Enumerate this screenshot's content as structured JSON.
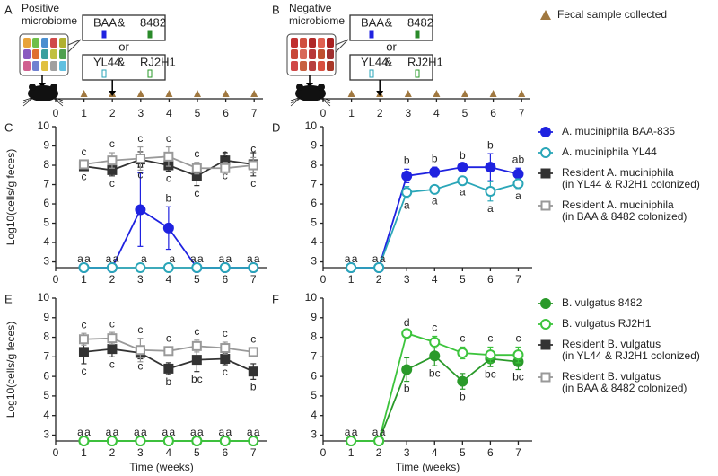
{
  "schematic": [
    {
      "label": "A",
      "title": [
        "Positive",
        "microbiome"
      ],
      "box_1": [
        "BAA",
        "&",
        "8482"
      ],
      "or": "or",
      "box_2": [
        "YL44",
        "&",
        "RJ2H1"
      ],
      "timeline": [
        0,
        1,
        2,
        3,
        4,
        5,
        6,
        7
      ]
    },
    {
      "label": "B",
      "title": [
        "Negative",
        "microbiome"
      ],
      "box_1": [
        "BAA",
        "&",
        "8482"
      ],
      "or": "or",
      "box_2": [
        "YL44",
        "&",
        "RJ2H1"
      ],
      "timeline": [
        0,
        1,
        2,
        3,
        4,
        5,
        6,
        7
      ]
    }
  ],
  "sample_legend": "Fecal sample collected",
  "chart_data": [
    {
      "type": "line",
      "panel_label": "C",
      "ylabel": "Log10(cells/g feces)",
      "x": [
        1,
        2,
        3,
        4,
        5,
        6,
        7
      ],
      "xlim": [
        0,
        7.5
      ],
      "xticks": [
        0,
        1,
        2,
        3,
        4,
        5,
        6,
        7
      ],
      "ylim": [
        2.7,
        10
      ],
      "yticks": [
        3,
        4,
        5,
        6,
        7,
        8,
        9,
        10
      ],
      "legend": "right",
      "series": [
        {
          "name": "A. muciniphila BAA-835",
          "color": "#1f22e0",
          "marker": "circle",
          "filled": true,
          "values": [
            2.7,
            2.7,
            5.7,
            4.75,
            2.7,
            2.7,
            2.7
          ],
          "errors": [
            0,
            0,
            1.9,
            1.1,
            0,
            0,
            0
          ],
          "letters": [
            "a",
            "a",
            "b",
            "b",
            "a",
            "a",
            "a"
          ],
          "letter_side": "above"
        },
        {
          "name": "A. muciniphila YL44",
          "color": "#2aa6b8",
          "marker": "circle",
          "filled": false,
          "values": [
            2.7,
            2.7,
            2.7,
            2.7,
            2.7,
            2.7,
            2.7
          ],
          "errors": [
            0,
            0,
            0,
            0,
            0,
            0,
            0
          ],
          "letters": [
            "a",
            "a",
            "a",
            "a",
            "a",
            "a",
            "a"
          ],
          "letter_side": "above"
        },
        {
          "name": "Resident A. muciniphila",
          "name_note": "(in YL44 & RJ2H1 colonized)",
          "color": "#333333",
          "marker": "square",
          "filled": true,
          "values": [
            7.95,
            7.75,
            8.3,
            8.0,
            7.45,
            8.25,
            8.05
          ],
          "errors": [
            0.15,
            0.3,
            0.4,
            0.3,
            0.5,
            0.4,
            0.6
          ],
          "letters": [
            "c",
            "c",
            "c",
            "c",
            "c",
            "c",
            "c"
          ],
          "letter_side": "below"
        },
        {
          "name": "Resident A. muciniphila",
          "name_note": "(in BAA & 8482 colonized)",
          "color": "#999999",
          "marker": "square",
          "filled": false,
          "values": [
            8.05,
            8.25,
            8.35,
            8.45,
            7.85,
            7.85,
            8.0
          ],
          "errors": [
            0.2,
            0.4,
            0.6,
            0.5,
            0.3,
            0.3,
            0.4
          ],
          "letters": [
            "c",
            "c",
            "c",
            "c",
            "c",
            "c",
            "c"
          ],
          "letter_side": "above"
        }
      ]
    },
    {
      "type": "line",
      "panel_label": "D",
      "x": [
        1,
        2,
        3,
        4,
        5,
        6,
        7
      ],
      "xlim": [
        0,
        7.5
      ],
      "xticks": [
        0,
        1,
        2,
        3,
        4,
        5,
        6,
        7
      ],
      "ylim": [
        2.7,
        10
      ],
      "yticks": [
        3,
        4,
        5,
        6,
        7,
        8,
        9,
        10
      ],
      "series": [
        {
          "color": "#1f22e0",
          "marker": "circle",
          "filled": true,
          "values": [
            2.7,
            2.7,
            7.45,
            7.65,
            7.9,
            7.9,
            7.55
          ],
          "errors": [
            0,
            0,
            0.35,
            0.25,
            0.15,
            0.7,
            0.3
          ],
          "letters": [
            "a",
            "a",
            "b",
            "b",
            "b",
            "b",
            "ab"
          ],
          "letter_side": "above"
        },
        {
          "color": "#2aa6b8",
          "marker": "circle",
          "filled": false,
          "values": [
            2.7,
            2.7,
            6.6,
            6.75,
            7.2,
            6.65,
            7.05
          ],
          "errors": [
            0,
            0,
            0.3,
            0.2,
            0.2,
            0.5,
            0.25
          ],
          "letters": [
            "a",
            "a",
            "a",
            "a",
            "a",
            "a",
            "a"
          ],
          "letter_side": "below"
        }
      ]
    },
    {
      "type": "line",
      "panel_label": "E",
      "ylabel": "Log10(cells/g feces)",
      "x": [
        1,
        2,
        3,
        4,
        5,
        6,
        7
      ],
      "xlim": [
        0,
        7.5
      ],
      "xticks": [
        0,
        1,
        2,
        3,
        4,
        5,
        6,
        7
      ],
      "ylim": [
        2.7,
        10
      ],
      "yticks": [
        3,
        4,
        5,
        6,
        7,
        8,
        9,
        10
      ],
      "legend": "right",
      "series": [
        {
          "name": "B. vulgatus 8482",
          "color": "#2a9a2a",
          "marker": "circle",
          "filled": true,
          "values": [
            2.7,
            2.7,
            2.7,
            2.7,
            2.7,
            2.7,
            2.7
          ],
          "errors": [
            0,
            0,
            0,
            0,
            0,
            0,
            0
          ],
          "letters": [
            "a",
            "a",
            "a",
            "a",
            "a",
            "a",
            "a"
          ],
          "letter_side": "above"
        },
        {
          "name": "B. vulgatus RJ2H1",
          "color": "#3cc43c",
          "marker": "circle",
          "filled": false,
          "values": [
            2.7,
            2.7,
            2.7,
            2.7,
            2.7,
            2.7,
            2.7
          ],
          "errors": [
            0,
            0,
            0,
            0,
            0,
            0,
            0
          ],
          "letters": [
            "a",
            "a",
            "a",
            "a",
            "a",
            "a",
            "a"
          ],
          "letter_side": "above"
        },
        {
          "name": "Resident B. vulgatus",
          "name_note": "(in YL44 & RJ2H1 colonized)",
          "color": "#333333",
          "marker": "square",
          "filled": true,
          "values": [
            7.25,
            7.4,
            7.2,
            6.4,
            6.85,
            6.9,
            6.25
          ],
          "errors": [
            0.6,
            0.4,
            0.3,
            0.3,
            0.6,
            0.3,
            0.4
          ],
          "letters": [
            "c",
            "c",
            "c",
            "b",
            "bc",
            "c",
            "b"
          ],
          "letter_side": "below"
        },
        {
          "name": "Resident B. vulgatus",
          "name_note": "(in BAA & 8482 colonized)",
          "color": "#999999",
          "marker": "square",
          "filled": false,
          "values": [
            7.9,
            7.95,
            7.35,
            7.3,
            7.55,
            7.45,
            7.25
          ],
          "errors": [
            0.3,
            0.3,
            0.6,
            0.2,
            0.3,
            0.3,
            0.2
          ],
          "letters": [
            "c",
            "c",
            "c",
            "c",
            "c",
            "c",
            "c"
          ],
          "letter_side": "above"
        }
      ]
    },
    {
      "type": "line",
      "panel_label": "F",
      "xlabel": "Time (weeks)",
      "x": [
        1,
        2,
        3,
        4,
        5,
        6,
        7
      ],
      "xlim": [
        0,
        7.5
      ],
      "xticks": [
        0,
        1,
        2,
        3,
        4,
        5,
        6,
        7
      ],
      "ylim": [
        2.7,
        10
      ],
      "yticks": [
        3,
        4,
        5,
        6,
        7,
        8,
        9,
        10
      ],
      "series": [
        {
          "color": "#2a9a2a",
          "marker": "circle",
          "filled": true,
          "values": [
            2.7,
            2.7,
            6.35,
            7.05,
            5.75,
            6.9,
            6.75
          ],
          "errors": [
            0,
            0,
            0.6,
            0.5,
            0.4,
            0.4,
            0.4
          ],
          "letters": [
            "a",
            "a",
            "b",
            "bc",
            "b",
            "bc",
            "bc"
          ],
          "letter_side": "below"
        },
        {
          "color": "#3cc43c",
          "marker": "circle",
          "filled": false,
          "values": [
            2.7,
            2.7,
            8.2,
            7.75,
            7.2,
            7.1,
            7.1
          ],
          "errors": [
            0,
            0,
            0.1,
            0.3,
            0.3,
            0.4,
            0.4
          ],
          "letters": [
            "a",
            "a",
            "d",
            "c",
            "c",
            "c",
            "c"
          ],
          "letter_side": "above"
        }
      ]
    }
  ]
}
